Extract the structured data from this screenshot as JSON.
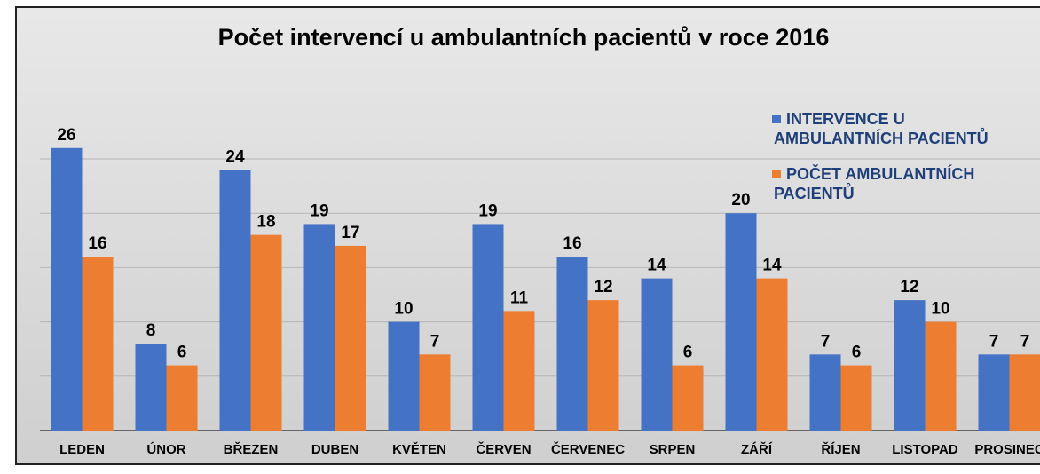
{
  "chart_data": {
    "type": "bar",
    "title": "Počet intervencí u ambulantních pacientů v roce 2016",
    "categories": [
      "LEDEN",
      "ÚNOR",
      "BŘEZEN",
      "DUBEN",
      "KVĚTEN",
      "ČERVEN",
      "ČERVENEC",
      "SRPEN",
      "ZÁŘÍ",
      "ŘÍJEN",
      "LISTOPAD",
      "PROSINEC"
    ],
    "series": [
      {
        "name": "INTERVENCE U AMBULANTNÍCH PACIENTŮ",
        "color": "#4472c4",
        "values": [
          26,
          8,
          24,
          19,
          10,
          19,
          16,
          14,
          20,
          7,
          12,
          7
        ]
      },
      {
        "name": "POČET AMBULANTNÍCH PACIENTŮ",
        "color": "#ed7d31",
        "values": [
          16,
          6,
          18,
          17,
          7,
          11,
          12,
          6,
          14,
          6,
          10,
          7
        ]
      }
    ],
    "ylim": [
      0,
      25
    ],
    "yticks": [
      0,
      5,
      10,
      15,
      20,
      25
    ],
    "grid": true,
    "legend": "top-right"
  }
}
